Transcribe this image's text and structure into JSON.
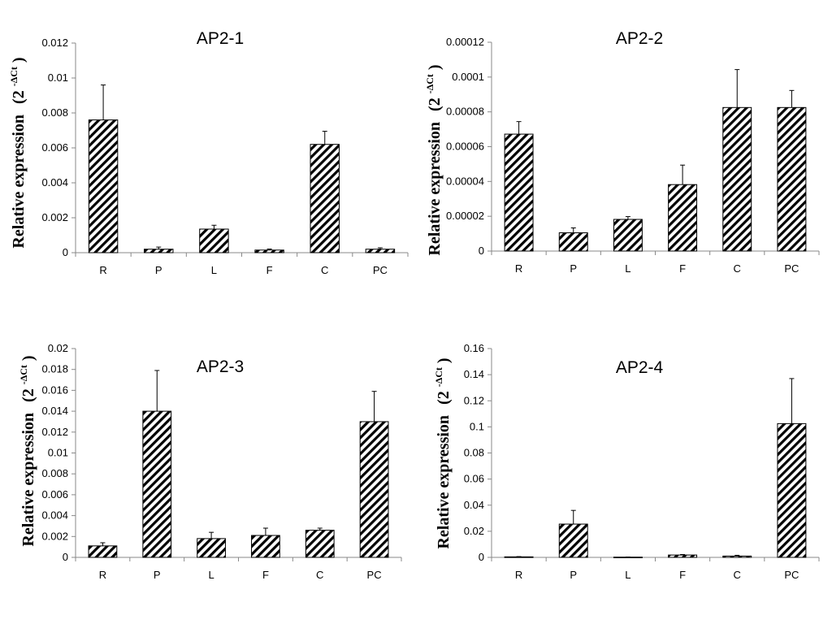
{
  "chart_data": [
    {
      "type": "bar",
      "title": "AP2-1",
      "ylabel": "Relative expression",
      "ylabel_unit_base": "(2",
      "ylabel_unit_exp": "-ΔCt",
      "ylabel_unit_close": ")",
      "categories": [
        "R",
        "P",
        "L",
        "F",
        "C",
        "PC"
      ],
      "values": [
        0.0076,
        0.0002,
        0.00135,
        0.00015,
        0.0062,
        0.0002
      ],
      "errors": [
        0.002,
        0.00012,
        0.00022,
        6e-05,
        0.00075,
        8e-05
      ],
      "ylim": [
        0,
        0.012
      ],
      "yticks": [
        0,
        0.002,
        0.004,
        0.006,
        0.008,
        0.01,
        0.012
      ],
      "ytick_labels": [
        "0",
        "0.002",
        "0.004",
        "0.006",
        "0.008",
        "0.01",
        "0.012"
      ]
    },
    {
      "type": "bar",
      "title": "AP2-2",
      "ylabel": "Relative expression",
      "ylabel_unit_base": "(2",
      "ylabel_unit_exp": "-ΔCt",
      "ylabel_unit_close": ")",
      "categories": [
        "R",
        "P",
        "L",
        "F",
        "C",
        "PC"
      ],
      "values": [
        6.72e-05,
        1.05e-05,
        1.82e-05,
        3.82e-05,
        8.25e-05,
        8.25e-05
      ],
      "errors": [
        7.2e-06,
        2.8e-06,
        1.6e-06,
        1.12e-05,
        2.18e-05,
        9.8e-06
      ],
      "ylim": [
        0,
        0.00012
      ],
      "yticks": [
        0,
        2e-05,
        4e-05,
        6e-05,
        8e-05,
        0.0001,
        0.00012
      ],
      "ytick_labels": [
        "0",
        "0.00002",
        "0.00004",
        "0.00006",
        "0.00008",
        "0.0001",
        "0.00012"
      ]
    },
    {
      "type": "bar",
      "title": "AP2-3",
      "ylabel": "Relative expression",
      "ylabel_unit_base": "(2",
      "ylabel_unit_exp": "-ΔCt",
      "ylabel_unit_close": ")",
      "categories": [
        "R",
        "P",
        "L",
        "F",
        "C",
        "PC"
      ],
      "values": [
        0.0011,
        0.014,
        0.0018,
        0.0021,
        0.0026,
        0.013
      ],
      "errors": [
        0.0003,
        0.0039,
        0.0006,
        0.0007,
        0.0002,
        0.0029
      ],
      "ylim": [
        0,
        0.02
      ],
      "yticks": [
        0,
        0.002,
        0.004,
        0.006,
        0.008,
        0.01,
        0.012,
        0.014,
        0.016,
        0.018,
        0.02
      ],
      "ytick_labels": [
        "0",
        "0.002",
        "0.004",
        "0.006",
        "0.008",
        "0.01",
        "0.012",
        "0.014",
        "0.016",
        "0.018",
        "0.02"
      ]
    },
    {
      "type": "bar",
      "title": "AP2-4",
      "ylabel": "Relative expression",
      "ylabel_unit_base": "(2",
      "ylabel_unit_exp": "-ΔCt",
      "ylabel_unit_close": ")",
      "categories": [
        "R",
        "P",
        "L",
        "F",
        "C",
        "PC"
      ],
      "values": [
        0.0004,
        0.0255,
        0.0002,
        0.0018,
        0.001,
        0.1025
      ],
      "errors": [
        0.0002,
        0.0105,
        0.0001,
        0.0004,
        0.0006,
        0.0345
      ],
      "ylim": [
        0,
        0.16
      ],
      "yticks": [
        0,
        0.02,
        0.04,
        0.06,
        0.08,
        0.1,
        0.12,
        0.14,
        0.16
      ],
      "ytick_labels": [
        "0",
        "0.02",
        "0.04",
        "0.06",
        "0.08",
        "0.1",
        "0.12",
        "0.14",
        "0.16"
      ]
    }
  ]
}
